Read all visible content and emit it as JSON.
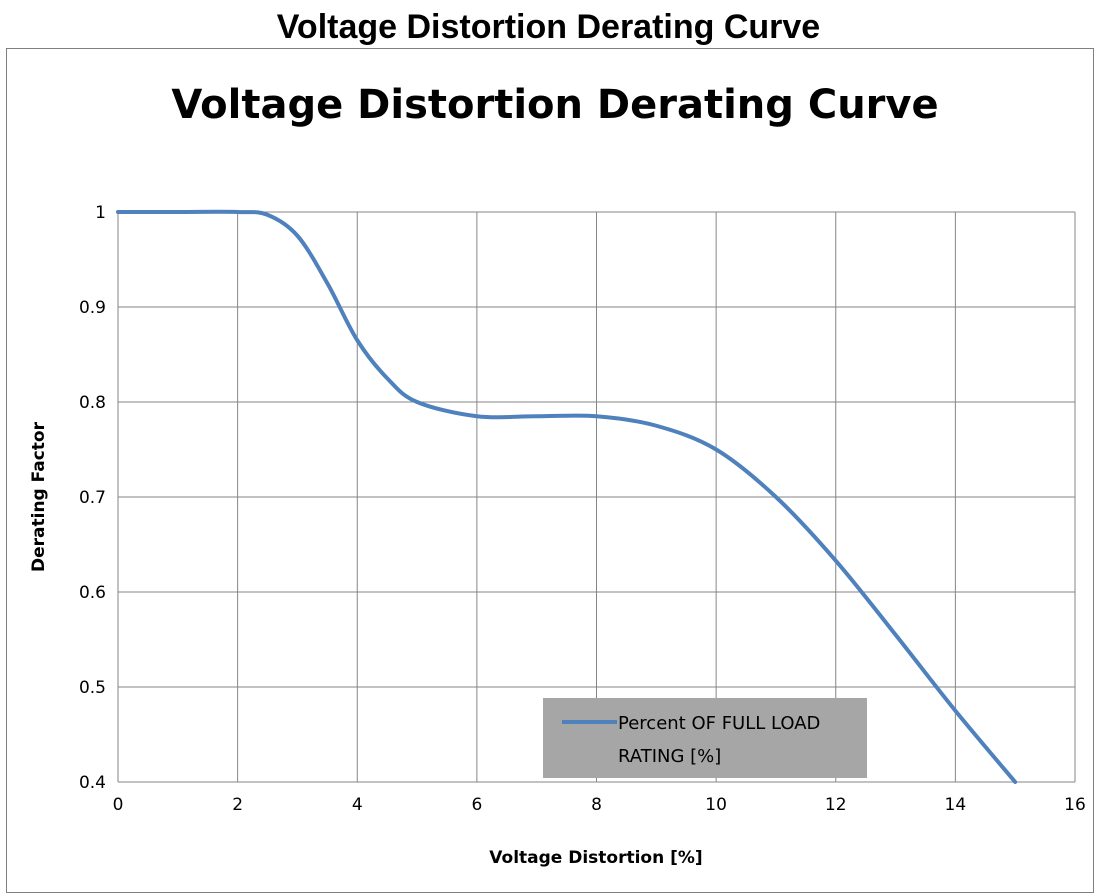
{
  "page": {
    "title": "Voltage Distortion Derating Curve"
  },
  "chart_data": {
    "type": "line",
    "title": "Voltage Distortion Derating Curve",
    "xlabel": "Voltage Distortion [%]",
    "ylabel": "Derating Factor",
    "xlim": [
      0,
      16
    ],
    "ylim": [
      0.4,
      1.0
    ],
    "xticks": [
      0,
      2,
      4,
      6,
      8,
      10,
      12,
      14,
      16
    ],
    "yticks": [
      0.4,
      0.5,
      0.6,
      0.7,
      0.8,
      0.9,
      1.0
    ],
    "xtick_labels": [
      "0",
      "2",
      "4",
      "6",
      "8",
      "10",
      "12",
      "14",
      "16"
    ],
    "ytick_labels": [
      "0.4",
      "0.5",
      "0.6",
      "0.7",
      "0.8",
      "0.9",
      "1"
    ],
    "grid": true,
    "legend": {
      "position": "bottom-right",
      "line1": "Percent OF FULL LOAD",
      "line2": "RATING [%]"
    },
    "series": [
      {
        "name": "Percent OF FULL LOAD RATING [%]",
        "color": "#4f81bd",
        "x": [
          0,
          1,
          2,
          2.5,
          3,
          3.5,
          4,
          4.5,
          5,
          6,
          7,
          8,
          9,
          10,
          11,
          12,
          13,
          14,
          15
        ],
        "y": [
          1.0,
          1.0,
          1.0,
          0.997,
          0.975,
          0.925,
          0.865,
          0.825,
          0.8,
          0.785,
          0.785,
          0.785,
          0.775,
          0.75,
          0.7,
          0.633,
          0.555,
          0.475,
          0.4
        ]
      }
    ]
  }
}
